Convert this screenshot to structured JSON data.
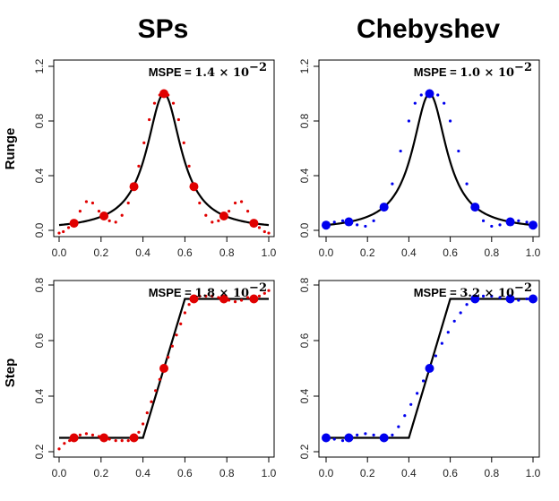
{
  "figure": {
    "column_titles": [
      "SPs",
      "Chebyshev"
    ],
    "row_titles": [
      "Runge",
      "Step"
    ]
  },
  "chart_data": [
    {
      "type": "line",
      "row": "Runge",
      "column": "SPs",
      "annotation": {
        "label": "MSPE = ",
        "value": "1.4 × 10",
        "exponent": "−2"
      },
      "xlim": [
        0,
        1
      ],
      "ylim": [
        0,
        1.2
      ],
      "xticks": [
        "0.0",
        "0.2",
        "0.4",
        "0.6",
        "0.8",
        "1.0"
      ],
      "yticks": [
        "0.0",
        "0.4",
        "0.8",
        "1.2"
      ],
      "true_function": "runge",
      "nodes": {
        "color": "#e00000",
        "x": [
          0.071,
          0.214,
          0.357,
          0.5,
          0.643,
          0.786,
          0.929
        ],
        "y": [
          0.052,
          0.105,
          0.32,
          1.0,
          0.32,
          0.105,
          0.052
        ]
      },
      "approximation": {
        "color": "#e00000",
        "style": "dotted",
        "x": [
          0.0,
          0.02,
          0.045,
          0.071,
          0.1,
          0.13,
          0.16,
          0.19,
          0.214,
          0.24,
          0.27,
          0.3,
          0.33,
          0.357,
          0.38,
          0.405,
          0.43,
          0.455,
          0.48,
          0.5,
          0.52,
          0.545,
          0.57,
          0.595,
          0.62,
          0.643,
          0.67,
          0.7,
          0.73,
          0.76,
          0.786,
          0.81,
          0.84,
          0.87,
          0.9,
          0.929,
          0.955,
          0.98,
          1.0
        ],
        "y": [
          -0.02,
          -0.01,
          0.02,
          0.052,
          0.14,
          0.21,
          0.2,
          0.14,
          0.105,
          0.07,
          0.06,
          0.11,
          0.2,
          0.32,
          0.47,
          0.64,
          0.81,
          0.93,
          0.99,
          1.0,
          0.99,
          0.93,
          0.81,
          0.64,
          0.47,
          0.32,
          0.2,
          0.11,
          0.06,
          0.07,
          0.105,
          0.14,
          0.2,
          0.21,
          0.14,
          0.052,
          0.02,
          -0.01,
          -0.02
        ]
      }
    },
    {
      "type": "line",
      "row": "Runge",
      "column": "Chebyshev",
      "annotation": {
        "label": "MSPE = ",
        "value": "1.0 × 10",
        "exponent": "−2"
      },
      "xlim": [
        0,
        1
      ],
      "ylim": [
        0,
        1.2
      ],
      "xticks": [
        "0.0",
        "0.2",
        "0.4",
        "0.6",
        "0.8",
        "1.0"
      ],
      "yticks": [
        "0.0",
        "0.4",
        "0.8",
        "1.2"
      ],
      "true_function": "runge",
      "nodes": {
        "color": "#0000ee",
        "x": [
          0.0,
          0.11,
          0.28,
          0.5,
          0.72,
          0.89,
          1.0
        ],
        "y": [
          0.038,
          0.062,
          0.17,
          1.0,
          0.17,
          0.062,
          0.038
        ]
      },
      "approximation": {
        "color": "#0000ee",
        "style": "dotted",
        "x": [
          0.0,
          0.04,
          0.08,
          0.11,
          0.15,
          0.19,
          0.23,
          0.28,
          0.32,
          0.36,
          0.4,
          0.43,
          0.46,
          0.5,
          0.54,
          0.57,
          0.6,
          0.64,
          0.68,
          0.72,
          0.76,
          0.8,
          0.84,
          0.89,
          0.93,
          0.97,
          1.0
        ],
        "y": [
          0.038,
          0.06,
          0.07,
          0.062,
          0.04,
          0.03,
          0.07,
          0.17,
          0.34,
          0.58,
          0.8,
          0.93,
          0.99,
          1.0,
          0.99,
          0.93,
          0.8,
          0.58,
          0.34,
          0.17,
          0.07,
          0.03,
          0.04,
          0.062,
          0.07,
          0.06,
          0.038
        ]
      }
    },
    {
      "type": "line",
      "row": "Step",
      "column": "SPs",
      "annotation": {
        "label": "MSPE = ",
        "value": "1.8 × 10",
        "exponent": "−2"
      },
      "xlim": [
        0,
        1
      ],
      "ylim": [
        0.2,
        0.8
      ],
      "xticks": [
        "0.0",
        "0.2",
        "0.4",
        "0.6",
        "0.8",
        "1.0"
      ],
      "yticks": [
        "0.2",
        "0.4",
        "0.6",
        "0.8"
      ],
      "true_function": "step",
      "nodes": {
        "color": "#e00000",
        "x": [
          0.071,
          0.214,
          0.357,
          0.5,
          0.643,
          0.786,
          0.929
        ],
        "y": [
          0.25,
          0.25,
          0.25,
          0.5,
          0.75,
          0.75,
          0.75
        ]
      },
      "approximation": {
        "color": "#e00000",
        "style": "dotted",
        "x": [
          0.0,
          0.025,
          0.05,
          0.071,
          0.1,
          0.13,
          0.16,
          0.19,
          0.214,
          0.24,
          0.27,
          0.3,
          0.33,
          0.357,
          0.38,
          0.4,
          0.42,
          0.44,
          0.46,
          0.48,
          0.5,
          0.52,
          0.54,
          0.56,
          0.58,
          0.6,
          0.62,
          0.643,
          0.67,
          0.7,
          0.73,
          0.76,
          0.786,
          0.81,
          0.84,
          0.87,
          0.9,
          0.929,
          0.955,
          0.98,
          1.0
        ],
        "y": [
          0.21,
          0.23,
          0.24,
          0.25,
          0.26,
          0.265,
          0.26,
          0.255,
          0.25,
          0.245,
          0.24,
          0.24,
          0.24,
          0.25,
          0.27,
          0.3,
          0.34,
          0.38,
          0.42,
          0.46,
          0.5,
          0.54,
          0.58,
          0.62,
          0.66,
          0.7,
          0.73,
          0.75,
          0.76,
          0.76,
          0.76,
          0.755,
          0.75,
          0.745,
          0.74,
          0.745,
          0.755,
          0.75,
          0.76,
          0.77,
          0.78
        ]
      }
    },
    {
      "type": "line",
      "row": "Step",
      "column": "Chebyshev",
      "annotation": {
        "label": "MSPE = ",
        "value": "3.2 × 10",
        "exponent": "−2"
      },
      "xlim": [
        0,
        1
      ],
      "ylim": [
        0.2,
        0.8
      ],
      "xticks": [
        "0.0",
        "0.2",
        "0.4",
        "0.6",
        "0.8",
        "1.0"
      ],
      "yticks": [
        "0.2",
        "0.4",
        "0.6",
        "0.8"
      ],
      "true_function": "step",
      "nodes": {
        "color": "#0000ee",
        "x": [
          0.0,
          0.11,
          0.28,
          0.5,
          0.72,
          0.89,
          1.0
        ],
        "y": [
          0.25,
          0.25,
          0.25,
          0.5,
          0.75,
          0.75,
          0.75
        ]
      },
      "approximation": {
        "color": "#0000ee",
        "style": "dotted",
        "x": [
          0.0,
          0.04,
          0.08,
          0.11,
          0.15,
          0.19,
          0.23,
          0.28,
          0.32,
          0.35,
          0.38,
          0.41,
          0.44,
          0.47,
          0.5,
          0.53,
          0.56,
          0.59,
          0.62,
          0.65,
          0.68,
          0.72,
          0.76,
          0.8,
          0.84,
          0.89,
          0.93,
          0.97,
          1.0
        ],
        "y": [
          0.25,
          0.245,
          0.24,
          0.25,
          0.26,
          0.265,
          0.26,
          0.25,
          0.26,
          0.29,
          0.33,
          0.37,
          0.41,
          0.455,
          0.5,
          0.545,
          0.59,
          0.63,
          0.67,
          0.7,
          0.73,
          0.75,
          0.76,
          0.76,
          0.755,
          0.75,
          0.745,
          0.75,
          0.75
        ]
      }
    }
  ]
}
